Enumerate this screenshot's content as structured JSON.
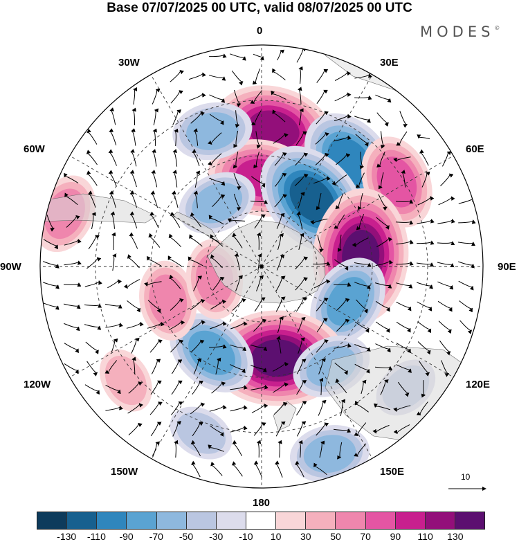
{
  "title": "Base 07/07/2025 00 UTC, valid 08/07/2025 00 UTC",
  "brand": "MODES",
  "brand_mark": "©",
  "longitude_labels": {
    "l0": "0",
    "l30e": "30E",
    "l60e": "60E",
    "l90e": "90E",
    "l120e": "120E",
    "l150e": "150E",
    "l180": "180",
    "l150w": "150W",
    "l120w": "120W",
    "l90w": "90W",
    "l60w": "60W",
    "l30w": "30W"
  },
  "vector_reference": {
    "label": "10"
  },
  "colorbar": {
    "colors": [
      "#0d3b5c",
      "#17608f",
      "#2f86bd",
      "#5aa3d2",
      "#8eb8de",
      "#bac6e1",
      "#dcdcec",
      "#ffffff",
      "#f9d6d8",
      "#f5b0bd",
      "#ef86ad",
      "#e455a3",
      "#c81f8e",
      "#930f7a",
      "#5c0f70"
    ],
    "ticks": [
      "-130",
      "-110",
      "-90",
      "-70",
      "-50",
      "-30",
      "-10",
      "10",
      "30",
      "50",
      "70",
      "90",
      "110",
      "130"
    ]
  },
  "map": {
    "projection": "south polar stereographic",
    "anomaly_features": [
      {
        "lon": 5,
        "lat_frac": 0.62,
        "value": 100
      },
      {
        "lon": 0,
        "lat_frac": 0.4,
        "value": 85
      },
      {
        "lon": 40,
        "lat_frac": 0.62,
        "value": -95
      },
      {
        "lon": 37,
        "lat_frac": 0.38,
        "value": -105
      },
      {
        "lon": 58,
        "lat_frac": 0.72,
        "value": 75
      },
      {
        "lon": 84,
        "lat_frac": 0.45,
        "value": 120
      },
      {
        "lon": 112,
        "lat_frac": 0.42,
        "value": -70
      },
      {
        "lon": 170,
        "lat_frac": 0.42,
        "value": 120
      },
      {
        "lon": 145,
        "lat_frac": 0.55,
        "value": -40
      },
      {
        "lon": -150,
        "lat_frac": 0.45,
        "value": -60
      },
      {
        "lon": -110,
        "lat_frac": 0.45,
        "value": 40
      },
      {
        "lon": -105,
        "lat_frac": 0.22,
        "value": 50
      },
      {
        "lon": -75,
        "lat_frac": 0.92,
        "value": 50
      },
      {
        "lon": -20,
        "lat_frac": 0.65,
        "value": -55
      },
      {
        "lon": -35,
        "lat_frac": 0.35,
        "value": -40
      },
      {
        "lon": 130,
        "lat_frac": 0.85,
        "value": -25
      },
      {
        "lon": -160,
        "lat_frac": 0.8,
        "value": -35
      },
      {
        "lon": -130,
        "lat_frac": 0.8,
        "value": 30
      },
      {
        "lon": 160,
        "lat_frac": 0.9,
        "value": -40
      }
    ]
  }
}
